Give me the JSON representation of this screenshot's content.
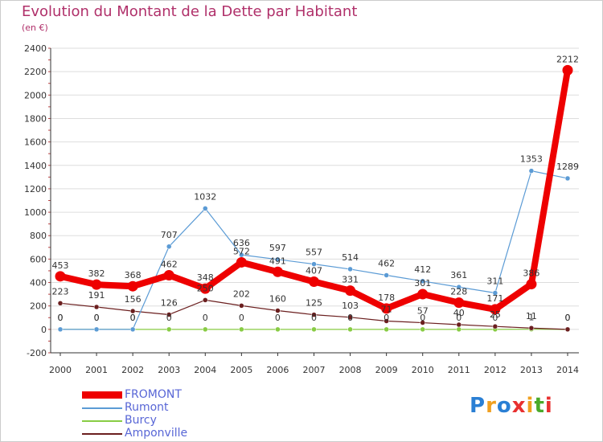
{
  "header": {
    "title": "Evolution du Montant de la Dette par Habitant",
    "subtitle": "(en €)"
  },
  "brand": {
    "logo_text": "Proxiti"
  },
  "colors": {
    "title": "#b0306a",
    "legend_text": "#5866d6",
    "grid": "#dddddd",
    "axis": "#333333",
    "tick_text": "#333333"
  },
  "chart_data": {
    "type": "line",
    "title": "Evolution du Montant de la Dette par Habitant",
    "subtitle": "(en €)",
    "xlabel": "",
    "ylabel": "",
    "x": [
      "2000",
      "2001",
      "2002",
      "2003",
      "2004",
      "2005",
      "2006",
      "2007",
      "2008",
      "2009",
      "2010",
      "2011",
      "2012",
      "2013",
      "2014"
    ],
    "ylim": [
      -200,
      2400
    ],
    "yticks": [
      -200,
      0,
      200,
      400,
      600,
      800,
      1000,
      1200,
      1400,
      1600,
      1800,
      2000,
      2200,
      2400
    ],
    "grid": "horizontal",
    "legend_position": "bottom-left",
    "series": [
      {
        "name": "FROMONT",
        "color": "#ee0000",
        "values": [
          453,
          382,
          368,
          462,
          348,
          572,
          491,
          407,
          331,
          178,
          301,
          228,
          171,
          386,
          2212
        ]
      },
      {
        "name": "Rumont",
        "color": "#5b9bd5",
        "values": [
          0,
          0,
          0,
          707,
          1032,
          636,
          597,
          557,
          514,
          462,
          412,
          361,
          311,
          1353,
          1289
        ]
      },
      {
        "name": "Burcy",
        "color": "#88cc44",
        "values": [
          0,
          0,
          0,
          0,
          0,
          0,
          0,
          0,
          0,
          0,
          0,
          0,
          0,
          1,
          0
        ]
      },
      {
        "name": "Amponville",
        "color": "#6b1f1f",
        "values": [
          223,
          191,
          156,
          126,
          250,
          202,
          160,
          125,
          103,
          71,
          57,
          40,
          25,
          11,
          0
        ]
      }
    ]
  }
}
